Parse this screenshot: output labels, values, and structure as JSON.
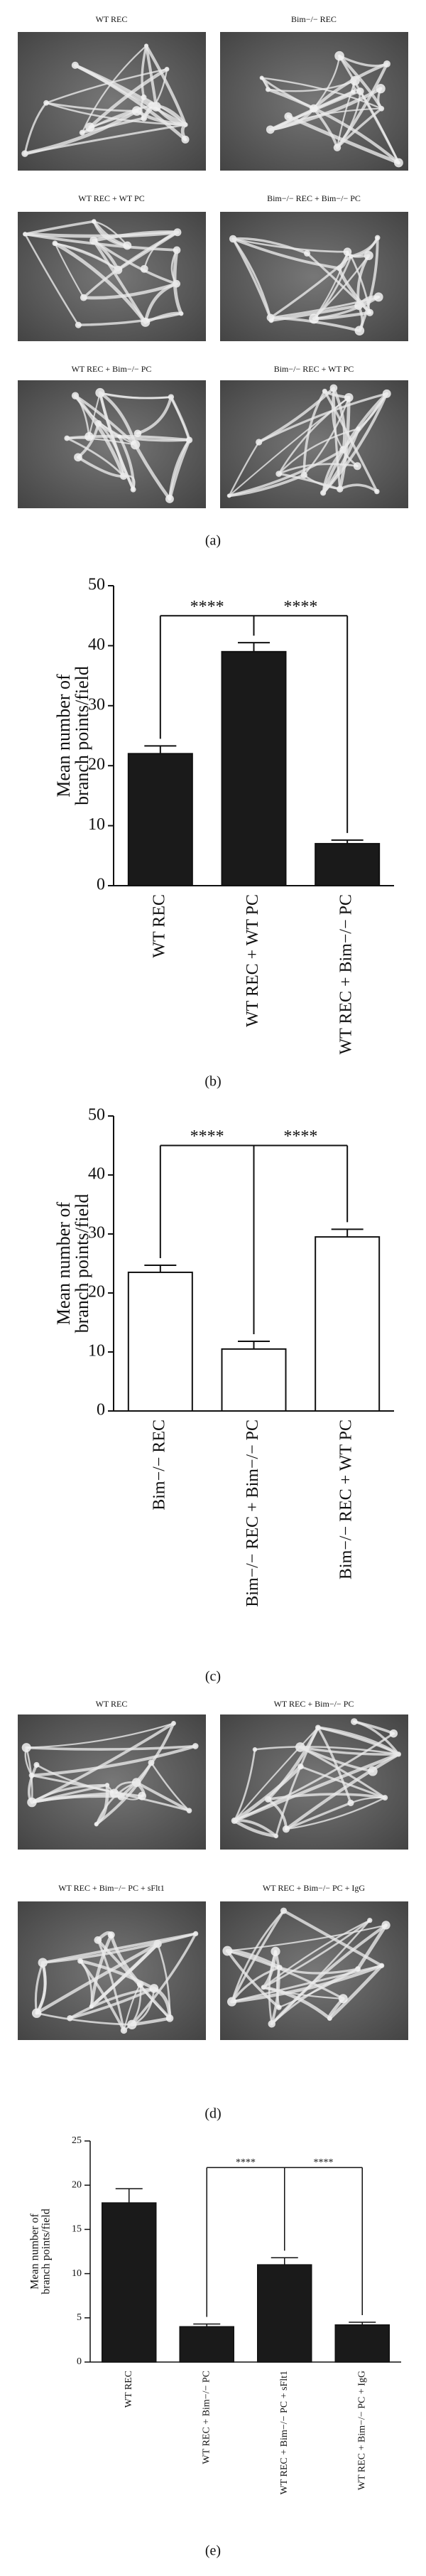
{
  "micrographs_a": {
    "labels": [
      "WT REC",
      "Bim−/− REC",
      "WT REC + WT PC",
      "Bim−/− REC + Bim−/− PC",
      "WT REC + Bim−/− PC",
      "Bim−/− REC + WT PC"
    ],
    "panel_label": "(a)"
  },
  "chart_data": [
    {
      "type": "bar",
      "panel_label": "(b)",
      "y_label": [
        "Mean number of",
        "branch points/field"
      ],
      "categories": [
        "WT REC",
        "WT REC + WT PC",
        "WT REC + Bim−/− PC"
      ],
      "values": [
        22,
        39,
        7
      ],
      "errors": [
        1.3,
        1.5,
        0.6
      ],
      "color": "#1a1a1a",
      "ylim": [
        0,
        50
      ],
      "yticks": [
        0,
        10,
        20,
        30,
        40,
        50
      ],
      "significance": [
        {
          "from": 0,
          "to": 1,
          "label": "****"
        },
        {
          "from": 1,
          "to": 2,
          "label": "****"
        }
      ],
      "bracket_y": 45
    },
    {
      "type": "bar",
      "panel_label": "(c)",
      "y_label": [
        "Mean number of",
        "branch points/field"
      ],
      "categories": [
        "Bim−/− REC",
        "Bim−/− REC + Bim−/− PC",
        "Bim−/− REC + WT PC"
      ],
      "values": [
        23.5,
        10.5,
        29.5
      ],
      "errors": [
        1.2,
        1.3,
        1.3
      ],
      "color": "#ffffff",
      "ylim": [
        0,
        50
      ],
      "yticks": [
        0,
        10,
        20,
        30,
        40,
        50
      ],
      "significance": [
        {
          "from": 0,
          "to": 1,
          "label": "****"
        },
        {
          "from": 1,
          "to": 2,
          "label": "****"
        }
      ],
      "bracket_y": 45
    },
    {
      "type": "bar",
      "panel_label": "(e)",
      "y_label": [
        "Mean number of",
        "branch points/field"
      ],
      "categories": [
        "WT REC",
        "WT REC + Bim−/− PC",
        "WT REC + Bim−/− PC + sFlt1",
        "WT REC + Bim−/− PC + IgG"
      ],
      "values": [
        18,
        4,
        11,
        4.2
      ],
      "errors": [
        1.6,
        0.3,
        0.8,
        0.3
      ],
      "color": "#1a1a1a",
      "ylim": [
        0,
        25
      ],
      "yticks": [
        0,
        5,
        10,
        15,
        20,
        25
      ],
      "significance": [
        {
          "from": 1,
          "to": 2,
          "label": "****"
        },
        {
          "from": 2,
          "to": 3,
          "label": "****"
        }
      ],
      "bracket_y": 22
    }
  ],
  "micrographs_d": {
    "labels": [
      "WT REC",
      "WT REC + Bim−/− PC",
      "WT REC + Bim−/− PC + sFlt1",
      "WT REC + Bim−/− PC + IgG"
    ],
    "panel_label": "(d)"
  }
}
